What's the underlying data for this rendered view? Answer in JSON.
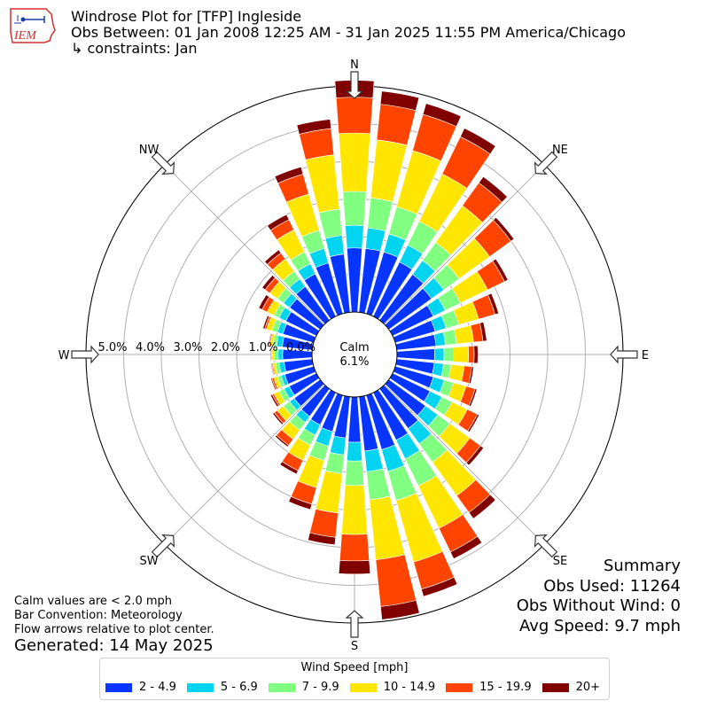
{
  "header": {
    "logo_text": "IEM",
    "title_line1": "Windrose Plot for [TFP] Ingleside",
    "title_line2": "Obs Between: 01 Jan 2008 12:25 AM - 31 Jan 2025 11:55 PM America/Chicago",
    "title_line3": "↳ constraints: Jan"
  },
  "summary": {
    "heading": "Summary",
    "obs_used": "Obs Used: 11264",
    "obs_without_wind": "Obs Without Wind: 0",
    "avg_speed": "Avg Speed: 9.7 mph"
  },
  "notes": {
    "calm_note": "Calm values are < 2.0 mph",
    "bar_convention": "Bar Convention: Meteorology",
    "flow_arrows": "Flow arrows relative to plot center.",
    "generated": "Generated: 14 May 2025"
  },
  "colors": {
    "speed_bins": [
      "#0535ff",
      "#00d4f0",
      "#80ff80",
      "#ffe600",
      "#ff4400",
      "#800000"
    ],
    "grid": "#b0b0b0"
  },
  "chart_data": {
    "type": "windrose",
    "center_label": "Calm",
    "calm_percent": "6.1%",
    "radial_ticks": [
      "0.0%",
      "1.0%",
      "2.0%",
      "3.0%",
      "4.0%",
      "5.0%"
    ],
    "radial_max_percent": 6.0,
    "compass_labels": [
      {
        "name": "N",
        "deg": 0
      },
      {
        "name": "NE",
        "deg": 45
      },
      {
        "name": "E",
        "deg": 90
      },
      {
        "name": "SE",
        "deg": 135
      },
      {
        "name": "S",
        "deg": 180
      },
      {
        "name": "SW",
        "deg": 225
      },
      {
        "name": "W",
        "deg": 270
      },
      {
        "name": "NW",
        "deg": 315
      }
    ],
    "legend_title": "Wind Speed [mph]",
    "legend": [
      "2 - 4.9",
      "5 - 6.9",
      "7 - 9.9",
      "10 - 14.9",
      "15 - 19.9",
      "20+"
    ],
    "directions_deg": [
      0,
      10,
      20,
      30,
      40,
      50,
      60,
      70,
      80,
      90,
      100,
      110,
      120,
      130,
      140,
      150,
      160,
      170,
      180,
      190,
      200,
      210,
      220,
      230,
      240,
      250,
      260,
      270,
      280,
      290,
      300,
      310,
      320,
      330,
      340,
      350
    ],
    "cumulative_percent": [
      [
        1.7,
        2.3,
        3.2,
        4.75,
        5.7,
        6.15
      ],
      [
        1.7,
        2.25,
        3.05,
        4.6,
        5.55,
        5.9
      ],
      [
        1.7,
        2.2,
        2.95,
        4.5,
        5.5,
        5.8
      ],
      [
        1.6,
        2.1,
        2.8,
        4.2,
        5.3,
        5.55
      ],
      [
        1.5,
        1.95,
        2.55,
        3.75,
        4.5,
        4.7
      ],
      [
        1.4,
        1.8,
        2.3,
        3.3,
        4.0,
        4.1
      ],
      [
        1.2,
        1.55,
        2.0,
        2.8,
        3.3,
        3.4
      ],
      [
        1.1,
        1.4,
        1.75,
        2.3,
        2.75,
        2.85
      ],
      [
        1.05,
        1.3,
        1.6,
        2.05,
        2.3,
        2.4
      ],
      [
        1.0,
        1.25,
        1.5,
        1.9,
        2.05,
        2.15
      ],
      [
        1.0,
        1.25,
        1.45,
        1.8,
        2.0,
        2.05
      ],
      [
        1.05,
        1.35,
        1.6,
        1.95,
        2.2,
        2.25
      ],
      [
        1.1,
        1.45,
        1.75,
        2.2,
        2.5,
        2.55
      ],
      [
        1.2,
        1.6,
        2.0,
        2.65,
        3.0,
        3.1
      ],
      [
        1.3,
        1.8,
        2.4,
        3.5,
        4.05,
        4.25
      ],
      [
        1.4,
        1.95,
        2.75,
        4.0,
        4.7,
        4.9
      ],
      [
        1.5,
        2.1,
        2.9,
        4.6,
        5.35,
        5.55
      ],
      [
        1.45,
        2.0,
        2.75,
        4.35,
        5.6,
        5.95
      ],
      [
        1.2,
        1.7,
        2.35,
        3.65,
        4.35,
        4.7
      ],
      [
        1.1,
        1.55,
        2.05,
        3.1,
        3.75,
        3.95
      ],
      [
        1.0,
        1.4,
        1.8,
        2.55,
        3.0,
        3.15
      ],
      [
        0.95,
        1.25,
        1.55,
        2.0,
        2.3,
        2.4
      ],
      [
        0.9,
        1.1,
        1.35,
        1.65,
        1.85,
        1.9
      ],
      [
        0.85,
        1.0,
        1.2,
        1.4,
        1.5,
        1.55
      ],
      [
        0.8,
        0.95,
        1.1,
        1.25,
        1.3,
        1.35
      ],
      [
        0.8,
        0.9,
        1.0,
        1.1,
        1.15,
        1.18
      ],
      [
        0.75,
        0.88,
        0.98,
        1.05,
        1.08,
        1.1
      ],
      [
        0.78,
        0.9,
        1.0,
        1.06,
        1.08,
        1.1
      ],
      [
        0.8,
        0.95,
        1.05,
        1.12,
        1.15,
        1.17
      ],
      [
        0.85,
        1.0,
        1.15,
        1.3,
        1.35,
        1.4
      ],
      [
        0.9,
        1.1,
        1.25,
        1.45,
        1.6,
        1.7
      ],
      [
        1.0,
        1.2,
        1.4,
        1.65,
        1.8,
        1.9
      ],
      [
        1.1,
        1.35,
        1.6,
        2.0,
        2.2,
        2.3
      ],
      [
        1.25,
        1.55,
        1.9,
        2.55,
        2.85,
        3.0
      ],
      [
        1.4,
        1.8,
        2.3,
        3.3,
        3.85,
        4.05
      ],
      [
        1.55,
        2.05,
        2.75,
        4.2,
        4.9,
        5.15
      ]
    ]
  }
}
